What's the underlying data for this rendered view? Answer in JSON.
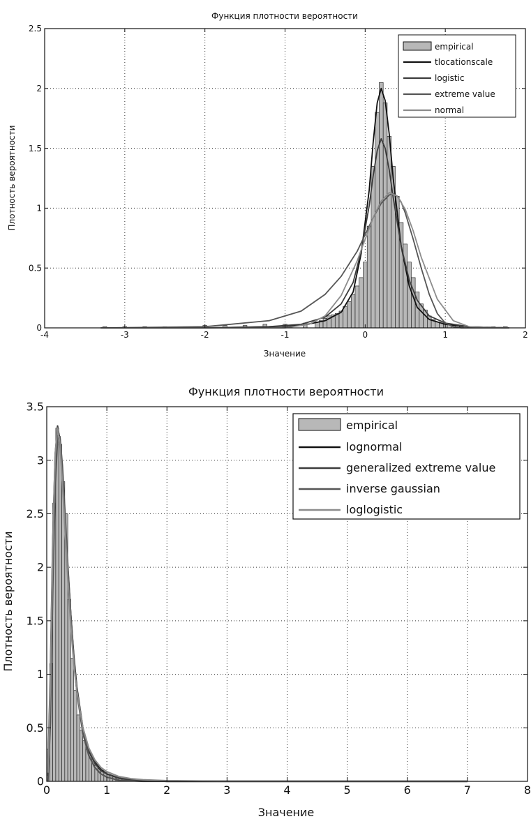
{
  "chart_data": [
    {
      "type": "bar",
      "title": "Функция плотности вероятности",
      "xlabel": "Значение",
      "ylabel": "Плотность вероятности",
      "xlim": [
        -4,
        2
      ],
      "ylim": [
        0,
        2.5
      ],
      "xticks": [
        -4,
        -3,
        -2,
        -1,
        0,
        1,
        2
      ],
      "yticks": [
        0,
        0.5,
        1,
        1.5,
        2,
        2.5
      ],
      "grid": true,
      "legend_position": "top-right",
      "histogram": {
        "name": "empirical",
        "color": "#b8b8b8",
        "bin_width": 0.05,
        "bins_x": [
          -3.25,
          -3.0,
          -2.75,
          -2.5,
          -2.25,
          -2.0,
          -1.75,
          -1.5,
          -1.25,
          -1.0,
          -0.75,
          -0.6,
          -0.55,
          -0.5,
          -0.45,
          -0.4,
          -0.35,
          -0.3,
          -0.25,
          -0.2,
          -0.15,
          -0.1,
          -0.05,
          0.0,
          0.05,
          0.1,
          0.15,
          0.2,
          0.25,
          0.3,
          0.35,
          0.4,
          0.45,
          0.5,
          0.55,
          0.6,
          0.65,
          0.7,
          0.75,
          0.8,
          0.85,
          0.9,
          0.95,
          1.0,
          1.05,
          1.1,
          1.15,
          1.2,
          1.3,
          1.4,
          1.5,
          1.6,
          1.75
        ],
        "values": [
          0.01,
          0.01,
          0.01,
          0.01,
          0.01,
          0.02,
          0.02,
          0.02,
          0.03,
          0.03,
          0.04,
          0.05,
          0.06,
          0.08,
          0.1,
          0.11,
          0.12,
          0.14,
          0.18,
          0.22,
          0.28,
          0.35,
          0.42,
          0.55,
          0.85,
          1.35,
          1.8,
          2.05,
          1.88,
          1.6,
          1.35,
          1.1,
          0.88,
          0.7,
          0.55,
          0.42,
          0.3,
          0.2,
          0.15,
          0.1,
          0.07,
          0.05,
          0.04,
          0.03,
          0.03,
          0.02,
          0.02,
          0.01,
          0.01,
          0.01,
          0.01,
          0.01,
          0.01
        ]
      },
      "series": [
        {
          "name": "tlocationscale",
          "color": "#111111",
          "x": [
            -3.3,
            -2.0,
            -1.2,
            -0.8,
            -0.5,
            -0.3,
            -0.15,
            -0.05,
            0.05,
            0.1,
            0.15,
            0.2,
            0.25,
            0.3,
            0.35,
            0.45,
            0.55,
            0.65,
            0.8,
            1.0,
            1.3,
            1.8
          ],
          "y": [
            0.0,
            0.0,
            0.01,
            0.02,
            0.06,
            0.13,
            0.3,
            0.62,
            1.15,
            1.55,
            1.88,
            2.0,
            1.9,
            1.62,
            1.25,
            0.68,
            0.35,
            0.17,
            0.07,
            0.03,
            0.01,
            0.0
          ]
        },
        {
          "name": "logistic",
          "color": "#3c3c3c",
          "x": [
            -3.3,
            -2.0,
            -1.2,
            -0.8,
            -0.5,
            -0.3,
            -0.15,
            -0.05,
            0.05,
            0.1,
            0.15,
            0.2,
            0.25,
            0.3,
            0.35,
            0.45,
            0.55,
            0.65,
            0.8,
            1.0,
            1.3,
            1.8
          ],
          "y": [
            0.0,
            0.0,
            0.01,
            0.03,
            0.09,
            0.2,
            0.38,
            0.64,
            1.02,
            1.27,
            1.48,
            1.58,
            1.5,
            1.32,
            1.09,
            0.68,
            0.4,
            0.23,
            0.1,
            0.04,
            0.01,
            0.0
          ]
        },
        {
          "name": "extreme value",
          "color": "#555555",
          "x": [
            -3.3,
            -2.0,
            -1.2,
            -0.8,
            -0.5,
            -0.3,
            -0.1,
            0.0,
            0.1,
            0.2,
            0.3,
            0.35,
            0.4,
            0.45,
            0.5,
            0.6,
            0.7,
            0.8,
            0.9,
            1.0,
            1.1,
            1.2,
            1.8
          ],
          "y": [
            0.0,
            0.01,
            0.06,
            0.14,
            0.28,
            0.43,
            0.64,
            0.78,
            0.92,
            1.04,
            1.11,
            1.12,
            1.1,
            1.05,
            0.96,
            0.74,
            0.5,
            0.28,
            0.12,
            0.04,
            0.01,
            0.0,
            0.0
          ]
        },
        {
          "name": "normal",
          "color": "#8c8c8c",
          "x": [
            -3.3,
            -1.5,
            -1.0,
            -0.7,
            -0.5,
            -0.3,
            -0.1,
            0.0,
            0.1,
            0.2,
            0.3,
            0.4,
            0.5,
            0.6,
            0.7,
            0.9,
            1.1,
            1.3,
            1.8
          ],
          "y": [
            0.0,
            0.0,
            0.0,
            0.03,
            0.1,
            0.27,
            0.56,
            0.74,
            0.92,
            1.06,
            1.13,
            1.1,
            0.99,
            0.81,
            0.59,
            0.24,
            0.06,
            0.01,
            0.0
          ]
        }
      ]
    },
    {
      "type": "bar",
      "title": "Функция плотности вероятности",
      "xlabel": "Значение",
      "ylabel": "Плотность вероятности",
      "xlim": [
        0,
        8
      ],
      "ylim": [
        0,
        3.5
      ],
      "xticks": [
        0,
        1,
        2,
        3,
        4,
        5,
        6,
        7,
        8
      ],
      "yticks": [
        0,
        0.5,
        1,
        1.5,
        2,
        2.5,
        3,
        3.5
      ],
      "grid": true,
      "legend_position": "top-right",
      "histogram": {
        "name": "empirical",
        "color": "#b8b8b8",
        "bin_width": 0.05,
        "bins_x": [
          0.025,
          0.075,
          0.125,
          0.175,
          0.225,
          0.275,
          0.325,
          0.375,
          0.425,
          0.475,
          0.525,
          0.575,
          0.625,
          0.675,
          0.725,
          0.775,
          0.825,
          0.875,
          0.925,
          0.975,
          1.025,
          1.075,
          1.125,
          1.175,
          1.225,
          1.275,
          1.325,
          1.375,
          1.425,
          1.475
        ],
        "values": [
          0.3,
          1.1,
          2.6,
          3.3,
          3.15,
          2.8,
          2.5,
          1.7,
          1.15,
          0.85,
          0.62,
          0.48,
          0.38,
          0.3,
          0.24,
          0.19,
          0.15,
          0.12,
          0.1,
          0.08,
          0.06,
          0.05,
          0.04,
          0.03,
          0.03,
          0.02,
          0.02,
          0.02,
          0.01,
          0.01
        ]
      },
      "series": [
        {
          "name": "lognormal",
          "color": "#111111",
          "x": [
            0.02,
            0.06,
            0.1,
            0.14,
            0.18,
            0.22,
            0.26,
            0.3,
            0.35,
            0.4,
            0.45,
            0.5,
            0.6,
            0.7,
            0.8,
            0.9,
            1.0,
            1.2,
            1.4,
            1.6,
            2.0,
            3.0,
            5.0,
            7.0
          ],
          "y": [
            0.05,
            0.85,
            2.1,
            2.95,
            3.3,
            3.2,
            2.9,
            2.5,
            2.0,
            1.55,
            1.17,
            0.88,
            0.5,
            0.3,
            0.18,
            0.11,
            0.07,
            0.03,
            0.015,
            0.008,
            0.0,
            0.0,
            0.0,
            0.0
          ]
        },
        {
          "name": "generalized extreme value",
          "color": "#3c3c3c",
          "x": [
            0.02,
            0.06,
            0.1,
            0.14,
            0.18,
            0.22,
            0.26,
            0.3,
            0.35,
            0.4,
            0.45,
            0.5,
            0.6,
            0.7,
            0.8,
            0.9,
            1.0,
            1.2,
            1.4,
            1.6,
            2.0,
            3.0,
            5.0,
            7.0
          ],
          "y": [
            0.1,
            1.0,
            2.25,
            3.05,
            3.32,
            3.18,
            2.85,
            2.45,
            1.95,
            1.5,
            1.13,
            0.85,
            0.48,
            0.28,
            0.17,
            0.1,
            0.07,
            0.03,
            0.015,
            0.01,
            0.0,
            0.0,
            0.0,
            0.0
          ]
        },
        {
          "name": "inverse gaussian",
          "color": "#555555",
          "x": [
            0.02,
            0.06,
            0.1,
            0.14,
            0.18,
            0.22,
            0.26,
            0.3,
            0.35,
            0.4,
            0.45,
            0.5,
            0.6,
            0.7,
            0.8,
            0.9,
            1.0,
            1.2,
            1.4,
            1.6,
            2.0,
            3.0,
            5.0,
            7.0
          ],
          "y": [
            0.0,
            0.55,
            1.8,
            2.75,
            3.2,
            3.22,
            2.95,
            2.55,
            2.03,
            1.55,
            1.15,
            0.84,
            0.45,
            0.24,
            0.13,
            0.07,
            0.04,
            0.01,
            0.005,
            0.0,
            0.0,
            0.0,
            0.0,
            0.0
          ]
        },
        {
          "name": "loglogistic",
          "color": "#8c8c8c",
          "x": [
            0.02,
            0.06,
            0.1,
            0.14,
            0.18,
            0.22,
            0.26,
            0.3,
            0.35,
            0.4,
            0.45,
            0.5,
            0.6,
            0.7,
            0.8,
            0.9,
            1.0,
            1.2,
            1.4,
            1.6,
            2.0,
            3.0,
            5.0,
            7.0
          ],
          "y": [
            0.08,
            0.9,
            2.2,
            3.05,
            3.3,
            3.15,
            2.8,
            2.4,
            1.9,
            1.45,
            1.1,
            0.85,
            0.5,
            0.31,
            0.2,
            0.13,
            0.09,
            0.045,
            0.025,
            0.015,
            0.006,
            0.0,
            0.0,
            0.0
          ]
        }
      ]
    }
  ]
}
